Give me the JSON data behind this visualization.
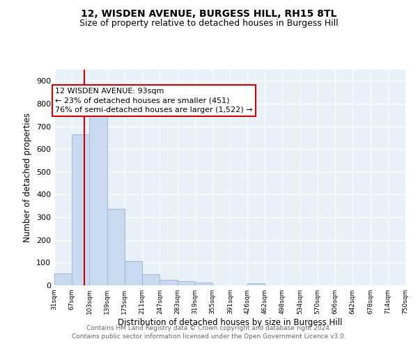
{
  "title": "12, WISDEN AVENUE, BURGESS HILL, RH15 8TL",
  "subtitle": "Size of property relative to detached houses in Burgess Hill",
  "xlabel": "Distribution of detached houses by size in Burgess Hill",
  "ylabel": "Number of detached properties",
  "bar_edges": [
    31,
    67,
    103,
    139,
    175,
    211,
    247,
    283,
    319,
    355,
    391,
    426,
    462,
    498,
    534,
    570,
    606,
    642,
    678,
    714,
    750
  ],
  "bar_heights": [
    52,
    665,
    748,
    336,
    107,
    50,
    25,
    17,
    13,
    0,
    0,
    9,
    0,
    0,
    0,
    0,
    0,
    0,
    0,
    0
  ],
  "bar_color": "#c9d9f0",
  "bar_edgecolor": "#a0b8d8",
  "property_line_x": 93,
  "property_line_color": "#cc0000",
  "annotation_text": "12 WISDEN AVENUE: 93sqm\n← 23% of detached houses are smaller (451)\n76% of semi-detached houses are larger (1,522) →",
  "annotation_box_color": "#ffffff",
  "annotation_box_edgecolor": "#cc0000",
  "ylim": [
    0,
    950
  ],
  "yticks": [
    0,
    100,
    200,
    300,
    400,
    500,
    600,
    700,
    800,
    900
  ],
  "tick_labels": [
    "31sqm",
    "67sqm",
    "103sqm",
    "139sqm",
    "175sqm",
    "211sqm",
    "247sqm",
    "283sqm",
    "319sqm",
    "355sqm",
    "391sqm",
    "426sqm",
    "462sqm",
    "498sqm",
    "534sqm",
    "570sqm",
    "606sqm",
    "642sqm",
    "678sqm",
    "714sqm",
    "750sqm"
  ],
  "background_color": "#e8f0f8",
  "grid_color": "#ffffff",
  "footer1": "Contains HM Land Registry data © Crown copyright and database right 2024.",
  "footer2": "Contains public sector information licensed under the Open Government Licence v3.0.",
  "title_fontsize": 10,
  "subtitle_fontsize": 9,
  "annotation_fontsize": 8,
  "footer_fontsize": 6.5
}
